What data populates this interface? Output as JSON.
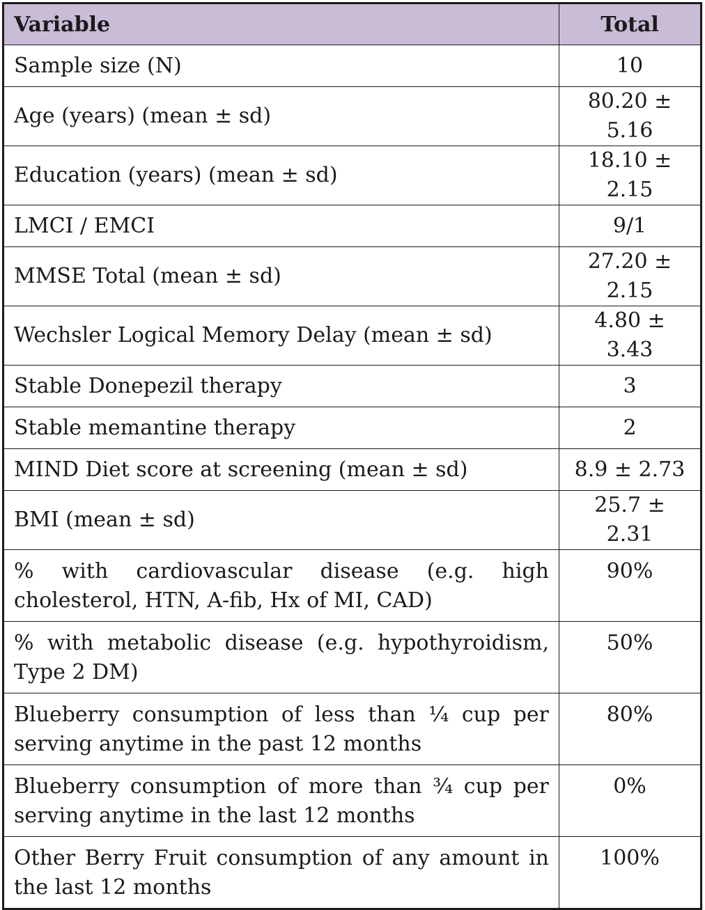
{
  "header": {
    "variable": "Variable",
    "total": "Total"
  },
  "rows": [
    {
      "label": "Sample size (N)",
      "value": "10"
    },
    {
      "label": "Age (years) (mean ± sd)",
      "value": "80.20 ± 5.16"
    },
    {
      "label": "Education (years) (mean ± sd)",
      "value": "18.10 ± 2.15"
    },
    {
      "label": "LMCI / EMCI",
      "value": "9/1"
    },
    {
      "label": "MMSE Total (mean ± sd)",
      "value": "27.20 ± 2.15"
    },
    {
      "label": "Wechsler Logical Memory Delay (mean ± sd)",
      "value": "4.80 ± 3.43"
    },
    {
      "label": "Stable Donepezil therapy",
      "value": "3"
    },
    {
      "label": "Stable memantine therapy",
      "value": "2"
    },
    {
      "label": "MIND Diet score at screening (mean ± sd)",
      "value": "8.9 ± 2.73"
    },
    {
      "label": "BMI (mean ± sd)",
      "value": "25.7 ± 2.31"
    },
    {
      "label": "% with cardiovascular disease (e.g. high cholesterol, HTN, A-fib, Hx of MI, CAD)",
      "value": "90%"
    },
    {
      "label": "% with metabolic disease (e.g. hypothyroidism, Type 2 DM)",
      "value": "50%"
    },
    {
      "label": "Blueberry consumption of less than ¼ cup per serving anytime in the past 12 months",
      "value": "80%"
    },
    {
      "label": "Blueberry consumption of more than ¾ cup per serving anytime in the last 12 months",
      "value": "0%"
    },
    {
      "label": "Other Berry Fruit consumption of any amount in the last 12 months",
      "value": "100%"
    }
  ]
}
